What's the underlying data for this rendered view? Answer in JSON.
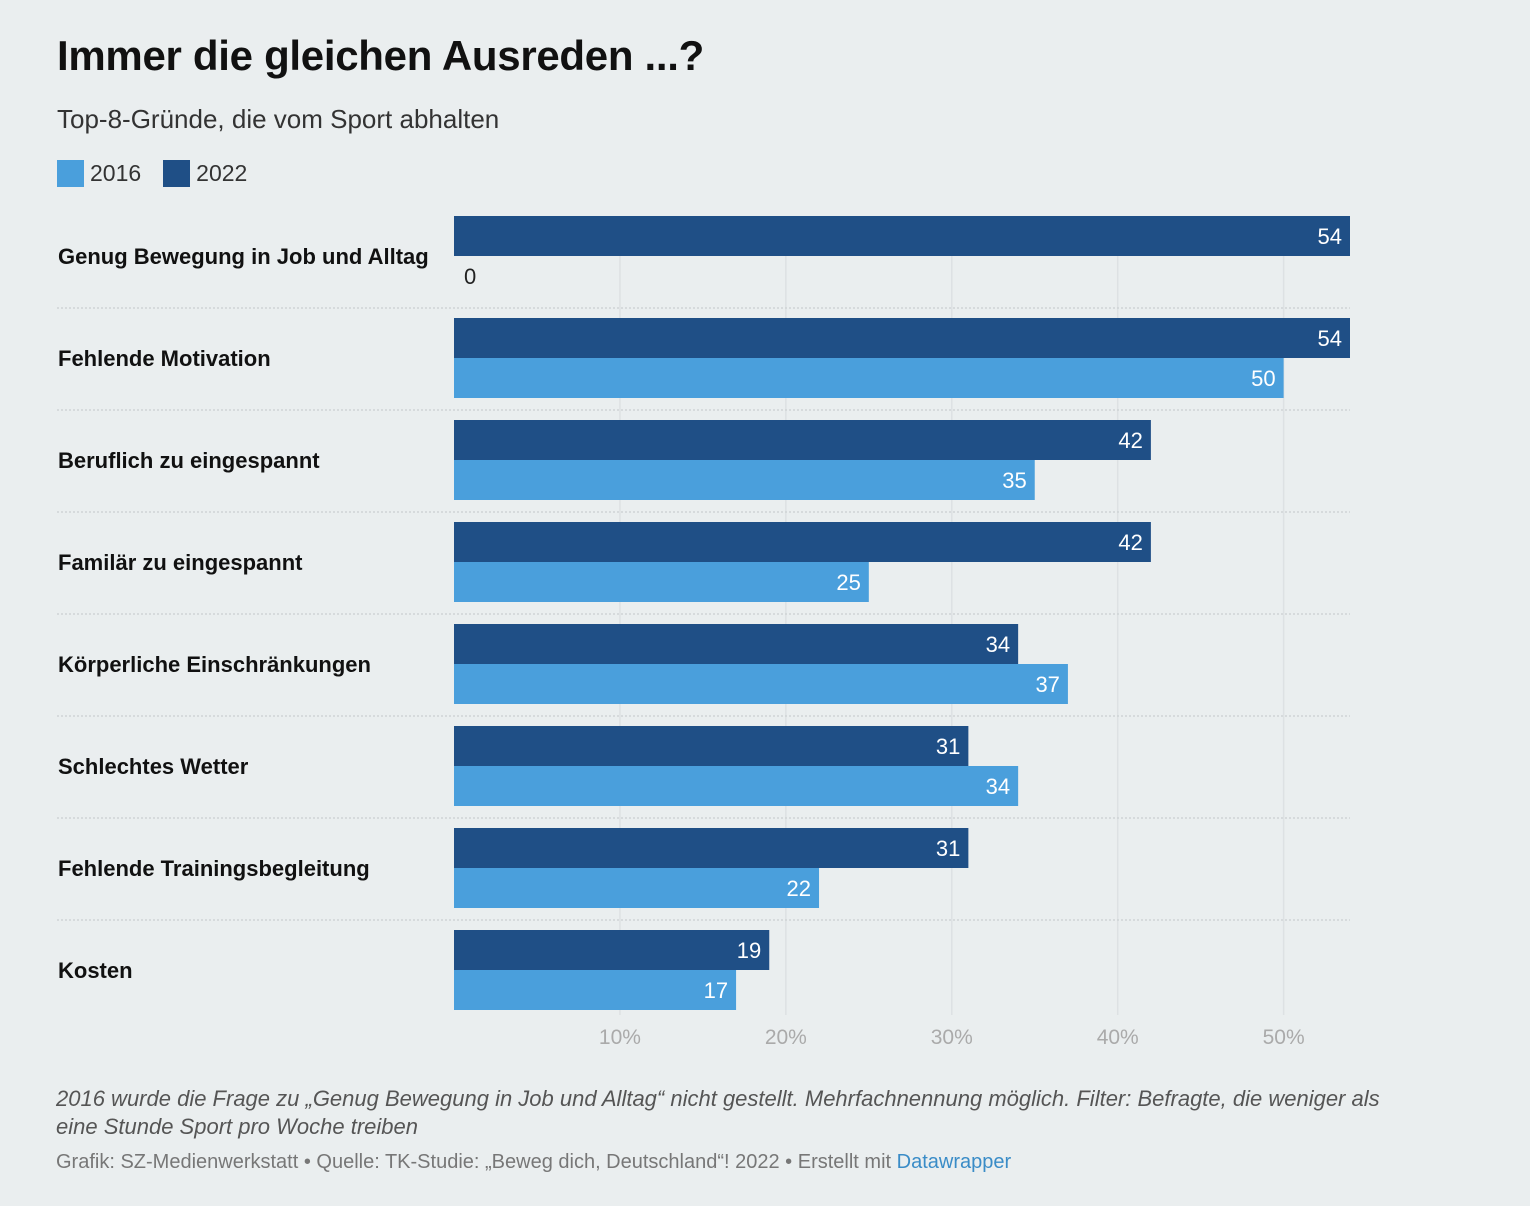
{
  "header": {
    "title": "Immer die gleichen Ausreden ...?",
    "subtitle": "Top-8-Gründe, die vom Sport abhalten"
  },
  "legend": [
    {
      "label": "2016",
      "color": "#4a9fdc"
    },
    {
      "label": "2022",
      "color": "#1f4f86"
    }
  ],
  "chart_data": {
    "type": "bar",
    "orientation": "horizontal",
    "categories": [
      "Genug Bewegung in Job und Alltag",
      "Fehlende Motivation",
      "Beruflich zu eingespannt",
      "Familär zu eingespannt",
      "Körperliche Einschränkungen",
      "Schlechtes Wetter",
      "Fehlende Trainingsbegleitung",
      "Kosten"
    ],
    "series": [
      {
        "name": "2022",
        "color": "#1f4f86",
        "values": [
          54,
          54,
          42,
          42,
          34,
          31,
          31,
          19
        ]
      },
      {
        "name": "2016",
        "color": "#4a9fdc",
        "values": [
          0,
          50,
          35,
          25,
          37,
          34,
          22,
          17
        ]
      }
    ],
    "xlim": [
      0,
      54
    ],
    "xticks": [
      10,
      20,
      30,
      40,
      50
    ],
    "xtick_labels": [
      "10%",
      "20%",
      "30%",
      "40%",
      "50%"
    ],
    "grid": true,
    "legend_position": "top-left"
  },
  "footer": {
    "notes": "2016 wurde die Frage zu „Genug Bewegung in Job und Alltag“ nicht gestellt. Mehrfachnennung möglich. Filter: Befragte, die weniger als eine Stunde Sport pro Woche treiben",
    "credits_text": "Grafik: SZ-Medienwerkstatt • Quelle: TK-Studie: „Beweg dich, Deutschland“! 2022 • Erstellt mit ",
    "credits_link": "Datawrapper"
  }
}
